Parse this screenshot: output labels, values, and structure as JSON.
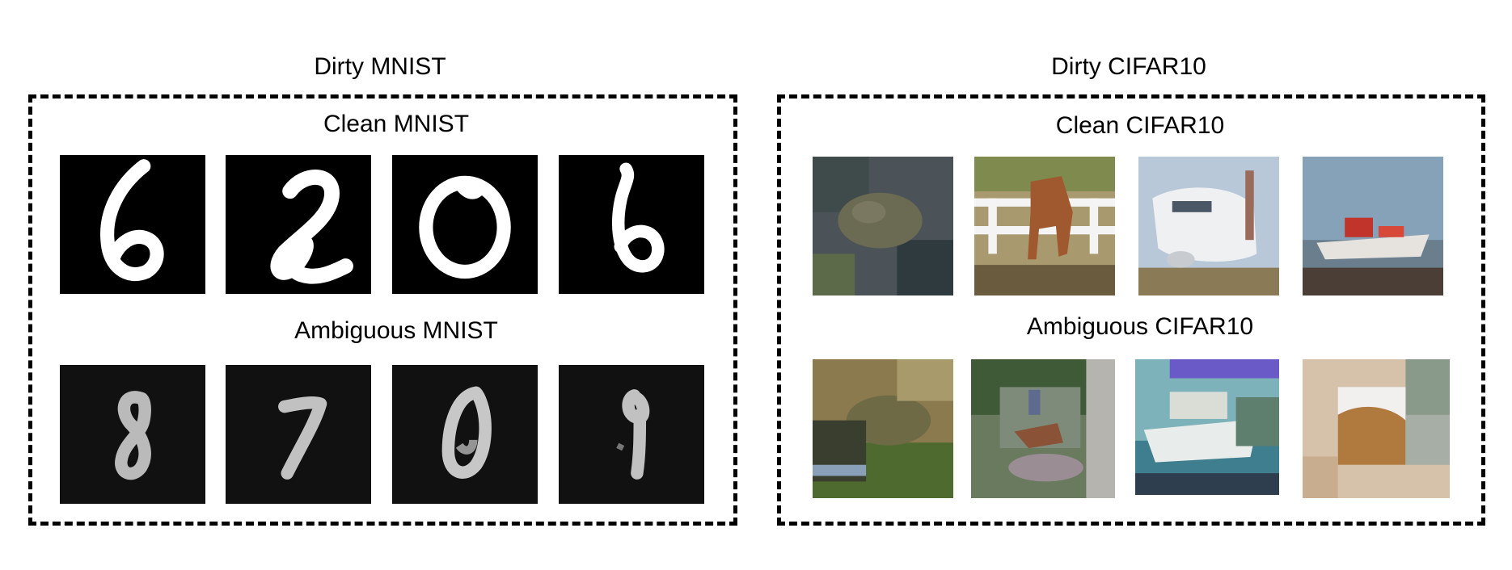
{
  "panels": {
    "mnist": {
      "title": "Dirty MNIST",
      "clean_title": "Clean MNIST",
      "ambiguous_title": "Ambiguous MNIST",
      "clean_digits": [
        "6",
        "2",
        "0",
        "6"
      ],
      "ambiguous_digits": [
        "8",
        "7",
        "0",
        "9"
      ]
    },
    "cifar": {
      "title": "Dirty CIFAR10",
      "clean_title": "Clean CIFAR10",
      "ambiguous_title": "Ambiguous CIFAR10",
      "clean_images": [
        "frog-image",
        "horse-image",
        "airplane-image",
        "ship-image"
      ],
      "ambiguous_images": [
        "frog-mixed-image",
        "horse-rider-mixed-image",
        "ship-mixed-image",
        "horse-mixed-image"
      ]
    }
  },
  "colors": {
    "frame": "#000000",
    "mnist_background": "#000000",
    "mnist_stroke": "#ffffff"
  }
}
